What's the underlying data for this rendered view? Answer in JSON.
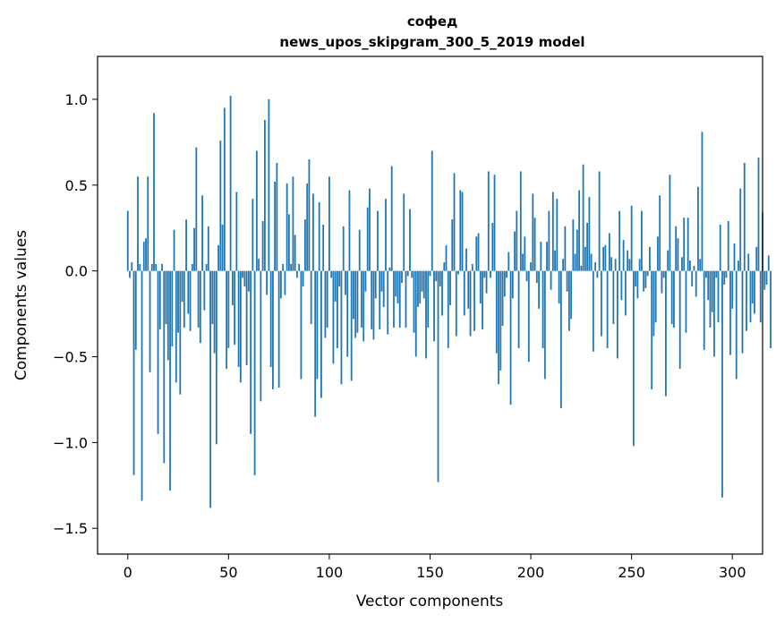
{
  "chart_data": {
    "type": "bar",
    "title": "софед",
    "subtitle": "news_upos_skipgram_300_5_2019 model",
    "xlabel": "Vector components",
    "ylabel": "Components values",
    "xlim": [
      -15,
      315
    ],
    "ylim": [
      -1.65,
      1.25
    ],
    "xticks": [
      0,
      50,
      100,
      150,
      200,
      250,
      300
    ],
    "yticks": [
      -1.5,
      -1.0,
      -0.5,
      0.0,
      0.5,
      1.0
    ],
    "ytick_labels": [
      "−1.5",
      "−1.0",
      "−0.5",
      "0.0",
      "0.5",
      "1.0"
    ],
    "bar_color": "#1f77b4",
    "grid": false,
    "x_start": 0,
    "values": [
      0.35,
      -0.04,
      0.05,
      -1.19,
      -0.46,
      0.55,
      0.04,
      -1.34,
      0.17,
      0.19,
      0.55,
      -0.59,
      0.04,
      0.92,
      0.04,
      -0.95,
      -0.34,
      0.04,
      -1.12,
      -0.31,
      -0.52,
      -1.28,
      -0.44,
      0.24,
      -0.65,
      -0.36,
      -0.72,
      -0.18,
      -0.33,
      0.3,
      -0.25,
      -0.35,
      0.04,
      0.25,
      0.72,
      -0.33,
      -0.42,
      0.44,
      -0.23,
      0.04,
      0.26,
      -1.38,
      -0.31,
      -0.48,
      -1.01,
      0.15,
      0.76,
      0.27,
      0.95,
      -0.57,
      -0.45,
      1.02,
      -0.2,
      -0.43,
      0.46,
      -0.56,
      -0.65,
      -0.04,
      -0.09,
      -0.55,
      -0.12,
      -0.95,
      0.42,
      -1.19,
      0.7,
      0.07,
      -0.76,
      0.29,
      0.88,
      -0.14,
      1.0,
      -0.56,
      -0.69,
      0.52,
      0.63,
      -0.68,
      -0.16,
      0.04,
      -0.14,
      0.51,
      0.33,
      0.04,
      0.55,
      0.21,
      -0.04,
      0.04,
      -0.63,
      -0.09,
      0.3,
      0.51,
      0.65,
      -0.31,
      0.45,
      -0.85,
      -0.63,
      0.4,
      -0.74,
      0.27,
      -0.39,
      -0.33,
      0.55,
      -0.04,
      -0.54,
      -0.18,
      -0.45,
      -0.09,
      -0.66,
      0.26,
      -0.14,
      -0.5,
      0.47,
      -0.64,
      -0.28,
      -0.39,
      -0.36,
      0.24,
      -0.33,
      -0.41,
      -0.12,
      0.37,
      0.48,
      -0.34,
      -0.4,
      -0.16,
      0.35,
      -0.34,
      -0.12,
      -0.21,
      0.42,
      -0.37,
      0.02,
      0.61,
      -0.33,
      -0.15,
      -0.19,
      -0.33,
      -0.07,
      0.45,
      -0.33,
      -0.03,
      0.36,
      -0.04,
      -0.36,
      -0.5,
      -0.21,
      -0.19,
      -0.12,
      -0.16,
      -0.51,
      -0.33,
      -0.03,
      0.7,
      -0.41,
      -0.06,
      -1.23,
      -0.09,
      -0.26,
      0.05,
      0.15,
      -0.45,
      -0.2,
      0.3,
      0.57,
      -0.38,
      -0.02,
      0.47,
      0.46,
      -0.26,
      0.13,
      -0.22,
      -0.38,
      0.04,
      -0.35,
      0.2,
      0.22,
      -0.19,
      -0.34,
      -0.04,
      -0.13,
      0.58,
      -0.04,
      0.28,
      0.56,
      -0.48,
      -0.66,
      -0.58,
      -0.32,
      -0.15,
      -0.04,
      0.11,
      -0.78,
      -0.16,
      0.23,
      0.35,
      -0.45,
      0.58,
      0.1,
      0.2,
      -0.06,
      -0.53,
      0.05,
      0.45,
      0.31,
      -0.07,
      -0.22,
      0.17,
      -0.45,
      -0.63,
      0.17,
      0.35,
      -0.11,
      0.46,
      0.12,
      0.42,
      -0.19,
      -0.8,
      0.07,
      0.26,
      -0.12,
      -0.35,
      -0.28,
      0.3,
      0.1,
      0.24,
      0.47,
      0.03,
      0.62,
      0.14,
      0.28,
      0.43,
      0.1,
      -0.47,
      0.05,
      -0.04,
      0.58,
      -0.38,
      0.14,
      0.15,
      -0.45,
      0.22,
      0.08,
      -0.31,
      0.07,
      -0.51,
      0.35,
      -0.17,
      0.18,
      -0.26,
      0.12,
      0.07,
      0.38,
      -1.02,
      -0.09,
      -0.16,
      0.07,
      0.35,
      -0.12,
      -0.1,
      -0.03,
      0.14,
      -0.69,
      -0.38,
      -0.3,
      0.2,
      0.44,
      -0.13,
      -0.04,
      -0.73,
      0.12,
      0.56,
      -0.31,
      -0.33,
      0.26,
      0.19,
      -0.57,
      0.08,
      0.31,
      -0.36,
      0.31,
      0.06,
      -0.09,
      0.03,
      -0.15,
      0.49,
      0.07,
      0.81,
      -0.46,
      -0.04,
      -0.17,
      -0.33,
      -0.24,
      -0.5,
      -0.04,
      -0.3,
      0.27,
      -1.32,
      -0.08,
      -0.04,
      0.29,
      -0.49,
      -0.22,
      0.16,
      -0.63,
      0.06,
      0.48,
      -0.48,
      0.63,
      -0.35,
      0.1,
      -0.3,
      -0.19,
      -0.25,
      0.14,
      0.66,
      -0.3,
      0.34,
      -0.11,
      -0.08,
      0.09,
      -0.45
    ]
  }
}
